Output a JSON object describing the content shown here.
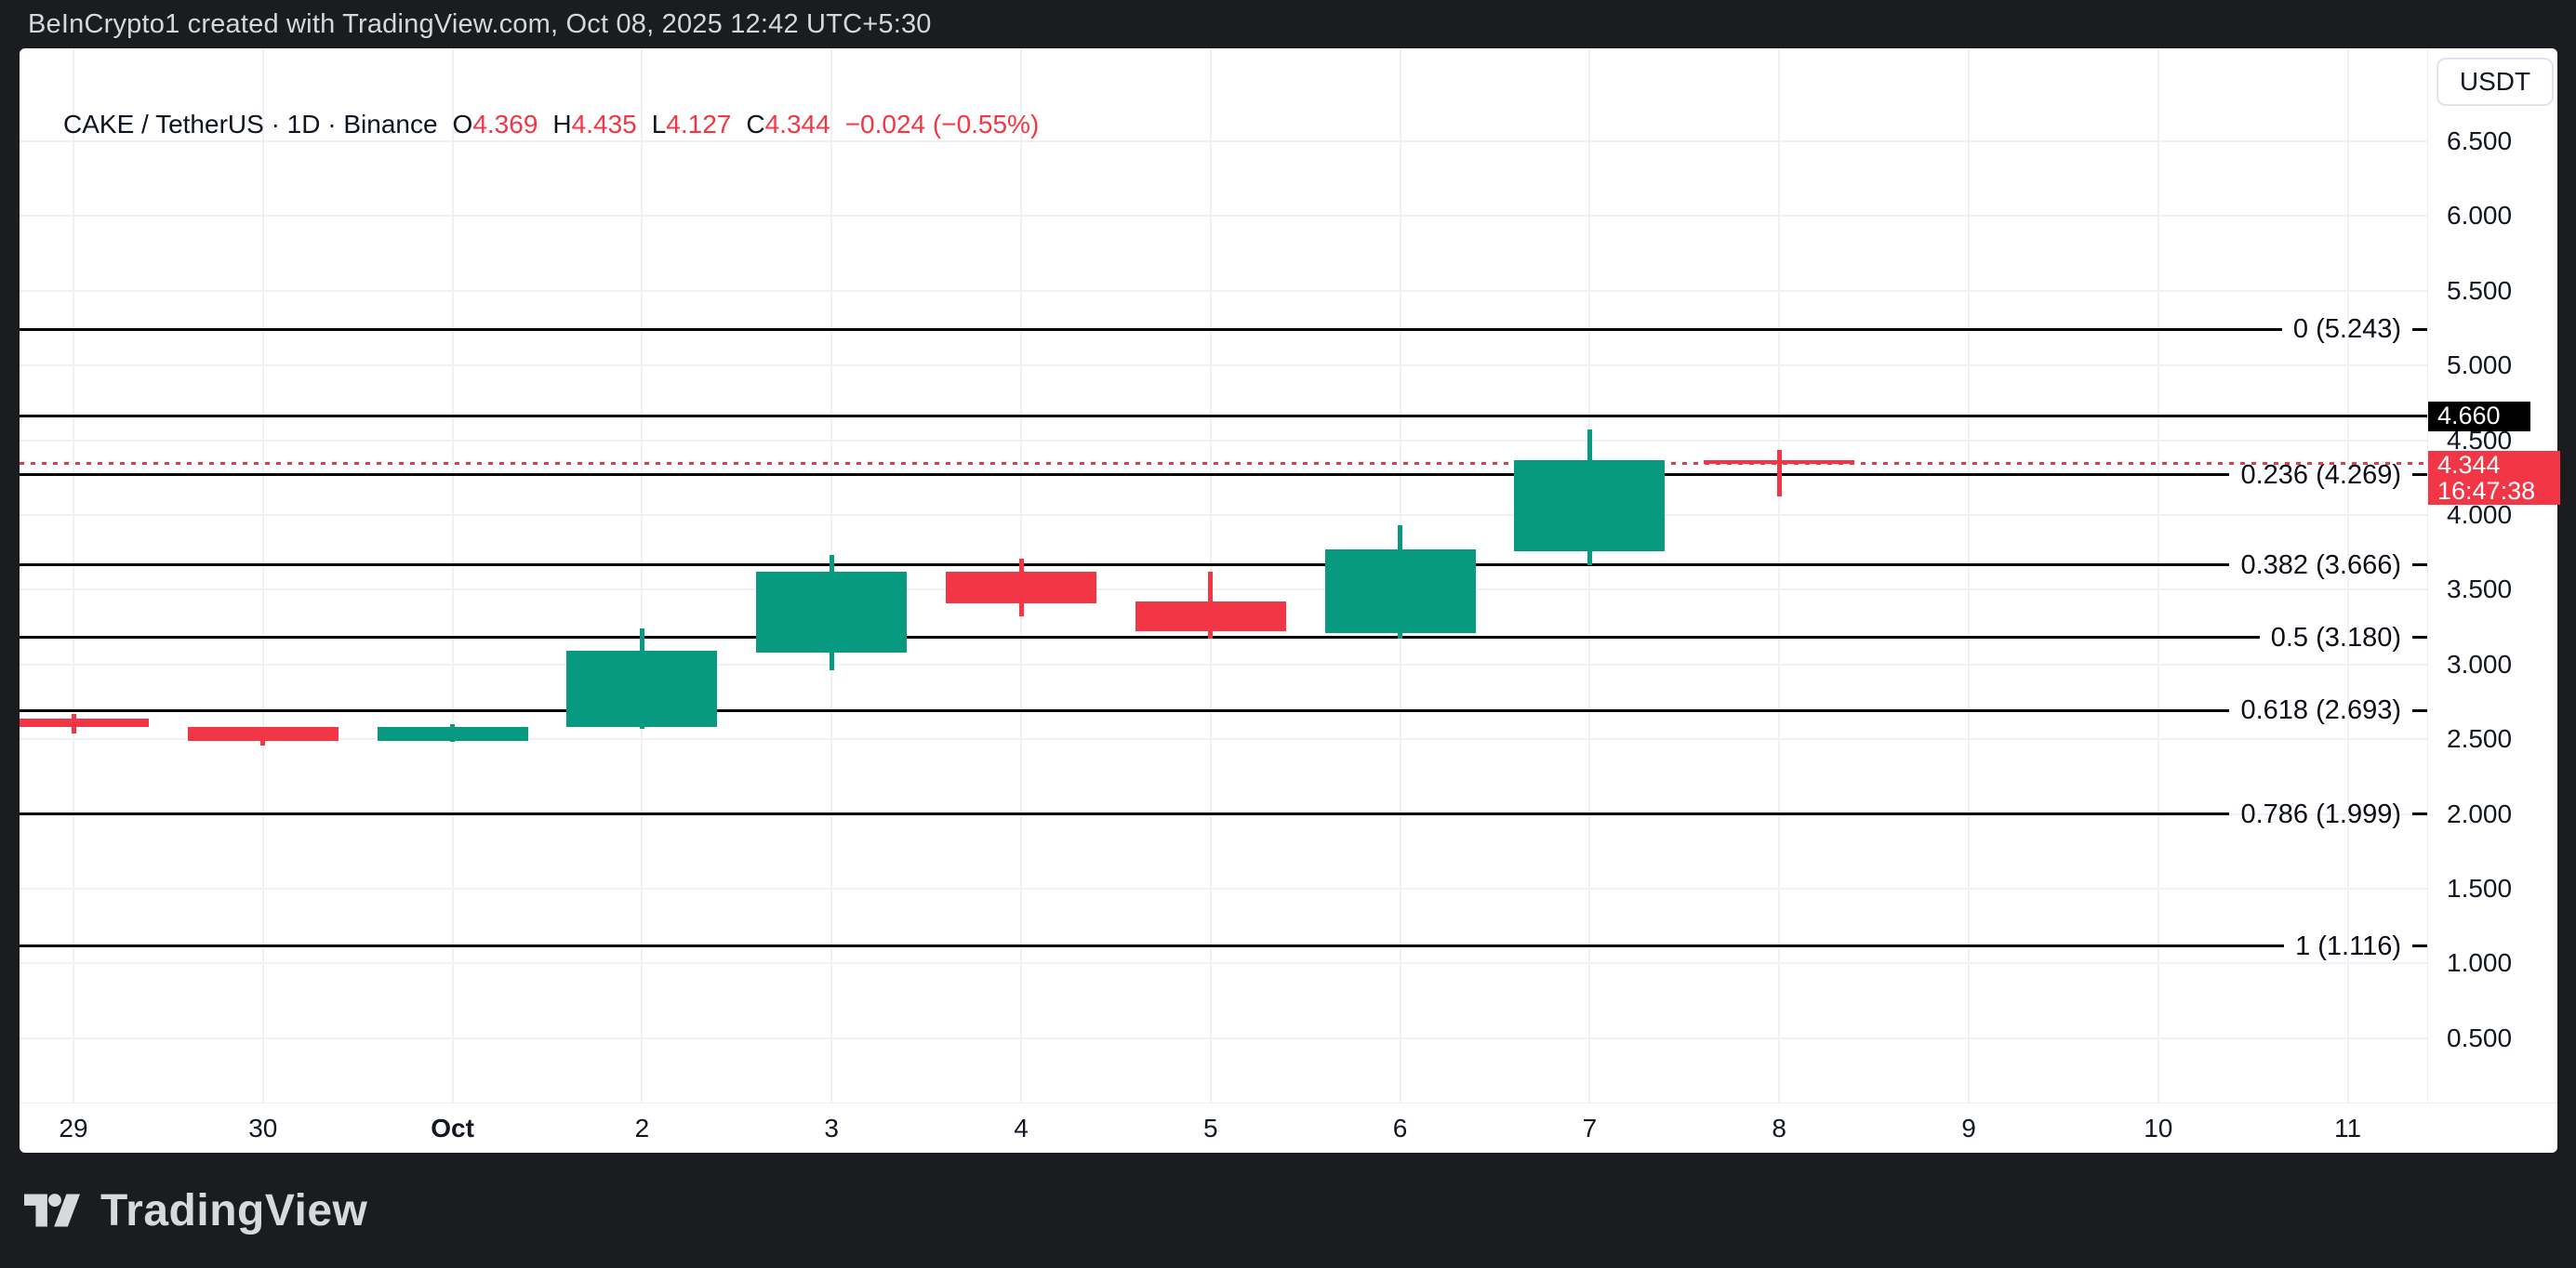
{
  "topbar": {
    "text": "BeInCrypto1 created with TradingView.com, Oct 08, 2025 12:42 UTC+5:30"
  },
  "header": {
    "symbol_line": "CAKE / TetherUS · 1D · Binance",
    "ohlc": [
      {
        "label": "O",
        "value": "4.369"
      },
      {
        "label": "H",
        "value": "4.435"
      },
      {
        "label": "L",
        "value": "4.127"
      },
      {
        "label": "C",
        "value": "4.344"
      }
    ],
    "change": "−0.024 (−0.55%)"
  },
  "price_scale": {
    "currency_button": "USDT",
    "marked_price_badge": "4.660",
    "last_price_badge": {
      "value": "4.344",
      "time": "16:47:38"
    }
  },
  "footer": {
    "brand": "TradingView"
  },
  "chart_data": {
    "type": "candlestick",
    "title": "CAKE / TetherUS · 1D · Binance",
    "x_labels": [
      "29",
      "30",
      "Oct",
      "2",
      "3",
      "4",
      "5",
      "6",
      "7",
      "8",
      "9",
      "10",
      "11"
    ],
    "bold_x_label": "Oct",
    "candles": [
      {
        "x_index": 0,
        "date": "Sep 29",
        "o": 2.64,
        "h": 2.67,
        "l": 2.54,
        "c": 2.58
      },
      {
        "x_index": 1,
        "date": "Sep 30",
        "o": 2.58,
        "h": 2.585,
        "l": 2.46,
        "c": 2.49
      },
      {
        "x_index": 2,
        "date": "Oct 1",
        "o": 2.49,
        "h": 2.6,
        "l": 2.485,
        "c": 2.58
      },
      {
        "x_index": 3,
        "date": "Oct 2",
        "o": 2.58,
        "h": 3.24,
        "l": 2.57,
        "c": 3.09
      },
      {
        "x_index": 4,
        "date": "Oct 3",
        "o": 3.08,
        "h": 3.73,
        "l": 2.96,
        "c": 3.62
      },
      {
        "x_index": 5,
        "date": "Oct 4",
        "o": 3.62,
        "h": 3.71,
        "l": 3.32,
        "c": 3.41
      },
      {
        "x_index": 6,
        "date": "Oct 5",
        "o": 3.42,
        "h": 3.62,
        "l": 3.17,
        "c": 3.22
      },
      {
        "x_index": 7,
        "date": "Oct 6",
        "o": 3.21,
        "h": 3.93,
        "l": 3.17,
        "c": 3.77
      },
      {
        "x_index": 8,
        "date": "Oct 7",
        "o": 3.76,
        "h": 4.57,
        "l": 3.665,
        "c": 4.37
      },
      {
        "x_index": 9,
        "date": "Oct 8",
        "o": 4.369,
        "h": 4.435,
        "l": 4.127,
        "c": 4.344
      }
    ],
    "fib_levels": [
      {
        "level": "0",
        "price": 5.243,
        "label": "0 (5.243)"
      },
      {
        "level": "0.236",
        "price": 4.269,
        "label": "0.236 (4.269)"
      },
      {
        "level": "0.382",
        "price": 3.666,
        "label": "0.382 (3.666)"
      },
      {
        "level": "0.5",
        "price": 3.18,
        "label": "0.5 (3.180)"
      },
      {
        "level": "0.618",
        "price": 2.693,
        "label": "0.618 (2.693)"
      },
      {
        "level": "0.786",
        "price": 1.999,
        "label": "0.786 (1.999)"
      },
      {
        "level": "1",
        "price": 1.116,
        "label": "1 (1.116)"
      }
    ],
    "price_lines": [
      {
        "price": 4.66,
        "style": "solid",
        "color": "#000000",
        "badge": "4.660"
      },
      {
        "price": 4.344,
        "style": "dotted",
        "color": "#f23645",
        "badge": "4.344"
      }
    ],
    "y_axis": {
      "min": 0.5,
      "max": 6.5,
      "step": 0.5,
      "labels": [
        "6.500",
        "6.000",
        "5.500",
        "5.000",
        "4.500",
        "4.000",
        "3.500",
        "3.000",
        "2.500",
        "2.000",
        "1.500",
        "1.000",
        "0.500"
      ],
      "grid": true,
      "position": "right"
    },
    "colors": {
      "up": "#089981",
      "down": "#f23645",
      "grid": "#eff1f4",
      "fib_line": "#000000"
    }
  }
}
